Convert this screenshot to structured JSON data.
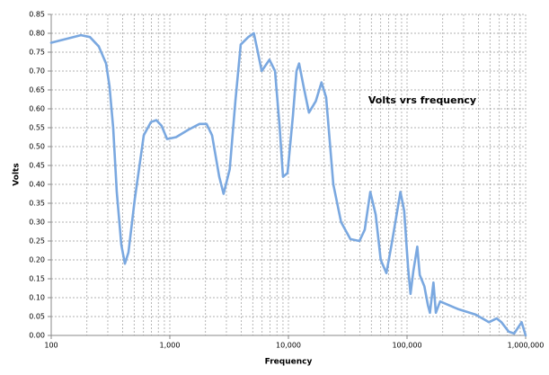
{
  "chart_data": {
    "type": "line",
    "title": "Volts vrs frequency",
    "x_label": "Frequency",
    "y_label": "Volts",
    "x_scale": "log",
    "minor_grid": true,
    "grid": true,
    "color": "#7aa8e0",
    "x": [
      100,
      178,
      212,
      252,
      290,
      310,
      333,
      357,
      390,
      418,
      448,
      506,
      603,
      693,
      770,
      852,
      948,
      1130,
      1440,
      1780,
      2040,
      2270,
      2610,
      2840,
      3200,
      3570,
      3960,
      4590,
      5110,
      5440,
      5950,
      6920,
      7710,
      8440,
      9000,
      9830,
      10900,
      11700,
      12300,
      13400,
      14900,
      17000,
      19000,
      20800,
      23900,
      27800,
      33300,
      39700,
      44000,
      49000,
      54400,
      60000,
      67000,
      74000,
      88000,
      94600,
      102000,
      107000,
      113000,
      122000,
      128000,
      140000,
      150000,
      156000,
      167000,
      175000,
      190000,
      226000,
      268000,
      380000,
      490000,
      570000,
      625000,
      720000,
      800000,
      925000,
      1000000
    ],
    "values": [
      0.775,
      0.795,
      0.79,
      0.765,
      0.72,
      0.66,
      0.55,
      0.38,
      0.24,
      0.19,
      0.22,
      0.36,
      0.53,
      0.565,
      0.57,
      0.555,
      0.52,
      0.525,
      0.545,
      0.56,
      0.56,
      0.53,
      0.42,
      0.375,
      0.44,
      0.62,
      0.77,
      0.79,
      0.8,
      0.76,
      0.7,
      0.73,
      0.7,
      0.55,
      0.42,
      0.43,
      0.58,
      0.7,
      0.72,
      0.66,
      0.59,
      0.62,
      0.67,
      0.63,
      0.4,
      0.3,
      0.255,
      0.25,
      0.28,
      0.38,
      0.32,
      0.2,
      0.165,
      0.24,
      0.38,
      0.33,
      0.18,
      0.11,
      0.17,
      0.235,
      0.16,
      0.13,
      0.08,
      0.06,
      0.14,
      0.06,
      0.09,
      0.08,
      0.07,
      0.055,
      0.035,
      0.045,
      0.035,
      0.01,
      0.005,
      0.035,
      0.0
    ],
    "xlim": [
      100,
      1000000
    ],
    "xticks": [
      100,
      {
        "value": 1000,
        "label": "1,000"
      },
      {
        "value": 10000,
        "label": "10,000"
      },
      {
        "value": 100000,
        "label": "100,000"
      },
      {
        "value": 1000000,
        "label": "1,000,000"
      }
    ],
    "ylim": [
      0,
      0.85
    ],
    "yticks": [
      {
        "value": 0,
        "label": "0.00"
      },
      {
        "value": 0.05,
        "label": "0.05"
      },
      {
        "value": 0.1,
        "label": "0.10"
      },
      {
        "value": 0.15,
        "label": "0.15"
      },
      {
        "value": 0.2,
        "label": "0.20"
      },
      {
        "value": 0.25,
        "label": "0.25"
      },
      {
        "value": 0.3,
        "label": "0.30"
      },
      {
        "value": 0.35,
        "label": "0.35"
      },
      {
        "value": 0.4,
        "label": "0.40"
      },
      {
        "value": 0.45,
        "label": "0.45"
      },
      {
        "value": 0.5,
        "label": "0.50"
      },
      {
        "value": 0.55,
        "label": "0.55"
      },
      {
        "value": 0.6,
        "label": "0.60"
      },
      {
        "value": 0.65,
        "label": "0.65"
      },
      {
        "value": 0.7,
        "label": "0.70"
      },
      {
        "value": 0.75,
        "label": "0.75"
      },
      {
        "value": 0.8,
        "label": "0.80"
      },
      {
        "value": 0.85,
        "label": "0.85"
      }
    ]
  }
}
